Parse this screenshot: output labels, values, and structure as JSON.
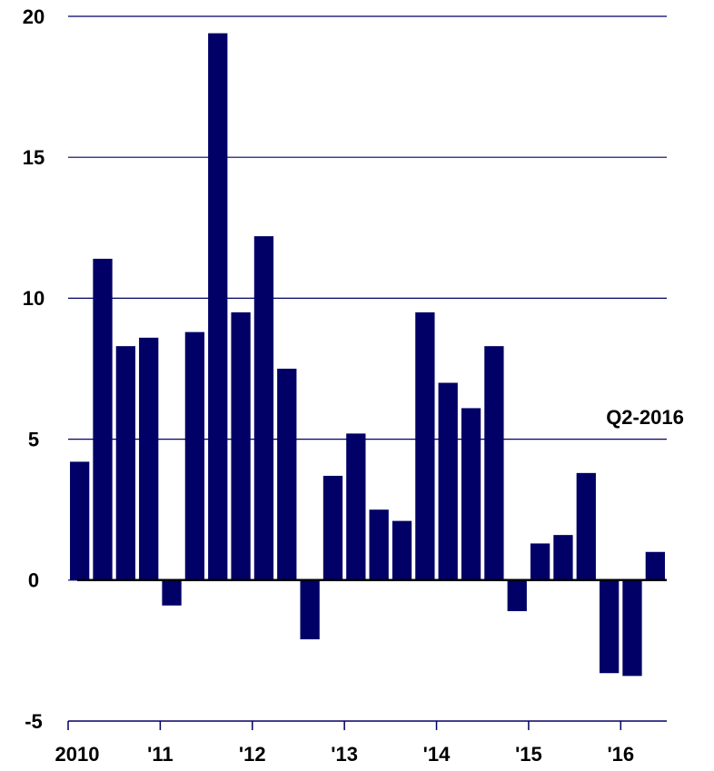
{
  "chart_data": {
    "type": "bar",
    "annotation": "Q2-2016",
    "categories": [
      "2010",
      null,
      null,
      null,
      "'11",
      null,
      null,
      null,
      "'12",
      null,
      null,
      null,
      "'13",
      null,
      null,
      null,
      "'14",
      null,
      null,
      null,
      "'15",
      null,
      null,
      null,
      "'16",
      null
    ],
    "values": [
      4.2,
      11.4,
      8.3,
      8.6,
      -0.9,
      8.8,
      19.4,
      9.5,
      12.2,
      7.5,
      -2.1,
      3.7,
      5.2,
      2.5,
      2.1,
      9.5,
      7.0,
      6.1,
      8.3,
      -1.1,
      1.3,
      1.6,
      3.8,
      -3.3,
      -3.4,
      1.0
    ],
    "color": "#000066",
    "ylim": [
      -5,
      20
    ],
    "yticks": [
      -5,
      0,
      5,
      10,
      15,
      20
    ],
    "grid": true
  }
}
